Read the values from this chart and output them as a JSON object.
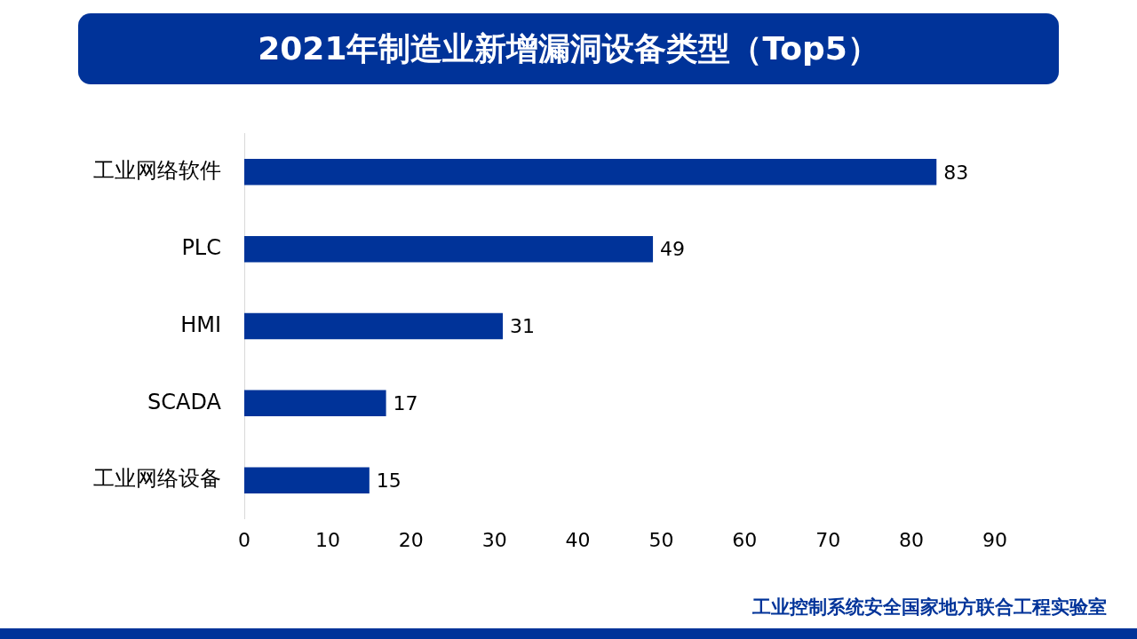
{
  "chart_data": {
    "type": "bar",
    "orientation": "horizontal",
    "title": "2021年制造业新增漏洞设备类型（Top5）",
    "categories": [
      "工业网络软件",
      "PLC",
      "HMI",
      "SCADA",
      "工业网络设备"
    ],
    "values": [
      83,
      49,
      31,
      17,
      15
    ],
    "color": "#003399",
    "xlim": [
      0,
      90
    ],
    "xticks": [
      0,
      10,
      20,
      30,
      40,
      50,
      60,
      70,
      80,
      90
    ],
    "grid": false,
    "legend": false,
    "data_labels": true,
    "annotations": [
      "工业控制系统安全国家地方联合工程实验室"
    ]
  }
}
